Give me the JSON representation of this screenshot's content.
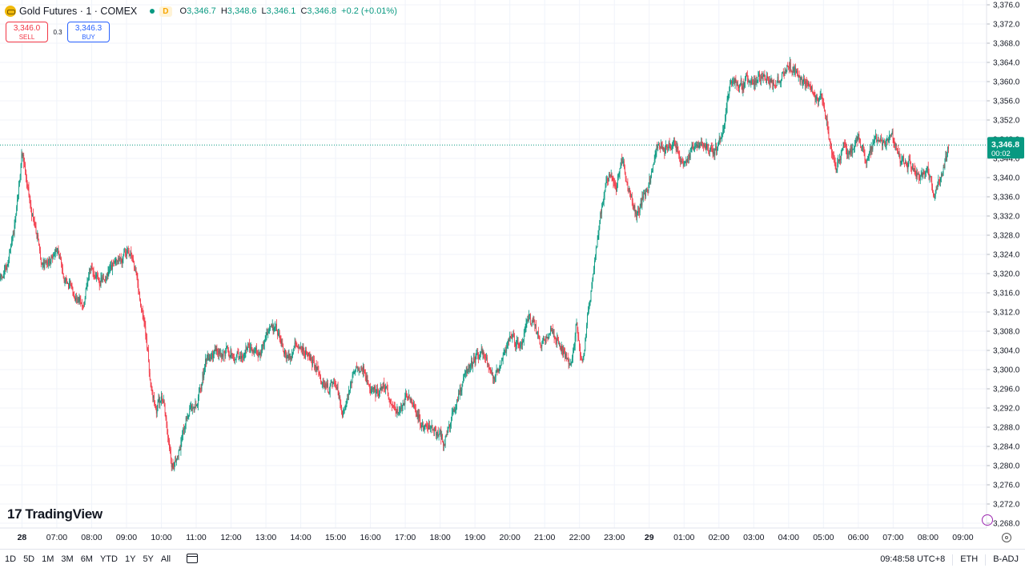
{
  "header": {
    "title": "Gold Futures · 1 · COMEX",
    "badge": "D",
    "ohlc": {
      "o_key": "O",
      "o": "3,346.7",
      "h_key": "H",
      "h": "3,348.6",
      "l_key": "L",
      "l": "3,346.1",
      "c_key": "C",
      "c": "3,346.8",
      "change": "+0.2 (+0.01%)"
    }
  },
  "trade": {
    "sell_price": "3,346.0",
    "sell_label": "SELL",
    "spread": "0.3",
    "buy_price": "3,346.3",
    "buy_label": "BUY"
  },
  "brand": {
    "name": "TradingView",
    "logo": "17"
  },
  "price_tag": {
    "price": "3,346.8",
    "countdown": "00:02"
  },
  "bottom_bar": {
    "ranges": [
      "1D",
      "5D",
      "1M",
      "3M",
      "6M",
      "YTD",
      "1Y",
      "5Y",
      "All"
    ],
    "time": "09:48:58 UTC+8",
    "session": "ETH",
    "adjust": "B-ADJ"
  },
  "colors": {
    "up": "#089981",
    "down": "#f23645",
    "grid": "#f0f3fa",
    "accent": "#2962ff"
  },
  "icons": [
    "calendar-range-icon",
    "gear-icon",
    "alert-icon",
    "tradingview-logo-icon"
  ],
  "chart_data": {
    "type": "candlestick",
    "symbol": "Gold Futures",
    "interval": "1",
    "exchange": "COMEX",
    "ylim": [
      3267,
      3377
    ],
    "y_ticks": [
      3268,
      3272,
      3276,
      3280,
      3284,
      3288,
      3292,
      3296,
      3300,
      3304,
      3308,
      3312,
      3316,
      3320,
      3324,
      3328,
      3332,
      3336,
      3340,
      3344,
      3348,
      3352,
      3356,
      3360,
      3364,
      3368,
      3372,
      3376
    ],
    "y_tick_labels": [
      "3,268.0",
      "3,272.0",
      "3,276.0",
      "3,280.0",
      "3,284.0",
      "3,288.0",
      "3,292.0",
      "3,296.0",
      "3,300.0",
      "3,304.0",
      "3,308.0",
      "3,312.0",
      "3,316.0",
      "3,320.0",
      "3,324.0",
      "3,328.0",
      "3,332.0",
      "3,336.0",
      "3,340.0",
      "3,344.0",
      "3,348.0",
      "3,352.0",
      "3,356.0",
      "3,360.0",
      "3,364.0",
      "3,368.0",
      "3,372.0",
      "3,376.0"
    ],
    "x_ticks": [
      "28",
      "07:00",
      "08:00",
      "09:00",
      "10:00",
      "11:00",
      "12:00",
      "13:00",
      "14:00",
      "15:00",
      "16:00",
      "17:00",
      "18:00",
      "19:00",
      "20:00",
      "21:00",
      "22:00",
      "23:00",
      "29",
      "01:00",
      "02:00",
      "03:00",
      "04:00",
      "05:00",
      "06:00",
      "07:00",
      "08:00",
      "09:00"
    ],
    "x_tick_hours": [
      6.0,
      7,
      8,
      9,
      10,
      11,
      12,
      13,
      14,
      15,
      16,
      17,
      18,
      19,
      20,
      21,
      22,
      23,
      24,
      25,
      26,
      27,
      28,
      29,
      30,
      31,
      32,
      33
    ],
    "x_range_hours": [
      5.37,
      33.68
    ],
    "last_price": 3346.8,
    "price_path": [
      [
        5.37,
        3319
      ],
      [
        5.55,
        3321
      ],
      [
        5.8,
        3331
      ],
      [
        6.0,
        3346
      ],
      [
        6.2,
        3335
      ],
      [
        6.4,
        3329
      ],
      [
        6.55,
        3322
      ],
      [
        6.8,
        3323
      ],
      [
        7.0,
        3325
      ],
      [
        7.2,
        3319
      ],
      [
        7.5,
        3316
      ],
      [
        7.75,
        3313
      ],
      [
        7.95,
        3321
      ],
      [
        8.3,
        3318
      ],
      [
        8.55,
        3321
      ],
      [
        8.8,
        3323
      ],
      [
        9.0,
        3325
      ],
      [
        9.2,
        3322
      ],
      [
        9.35,
        3316
      ],
      [
        9.55,
        3306
      ],
      [
        9.7,
        3296
      ],
      [
        9.85,
        3291
      ],
      [
        10.0,
        3296
      ],
      [
        10.15,
        3287
      ],
      [
        10.3,
        3280
      ],
      [
        10.5,
        3283
      ],
      [
        10.7,
        3290
      ],
      [
        11.0,
        3293
      ],
      [
        11.3,
        3303
      ],
      [
        11.6,
        3304
      ],
      [
        12.0,
        3303
      ],
      [
        12.3,
        3302
      ],
      [
        12.5,
        3305
      ],
      [
        12.8,
        3303
      ],
      [
        13.0,
        3308
      ],
      [
        13.3,
        3309
      ],
      [
        13.6,
        3302
      ],
      [
        13.9,
        3305
      ],
      [
        14.2,
        3303
      ],
      [
        14.5,
        3299
      ],
      [
        14.8,
        3296
      ],
      [
        15.0,
        3297
      ],
      [
        15.2,
        3290
      ],
      [
        15.5,
        3300
      ],
      [
        15.8,
        3300
      ],
      [
        16.0,
        3296
      ],
      [
        16.2,
        3295
      ],
      [
        16.4,
        3297
      ],
      [
        16.6,
        3293
      ],
      [
        16.8,
        3290
      ],
      [
        17.0,
        3295
      ],
      [
        17.2,
        3292
      ],
      [
        17.5,
        3288
      ],
      [
        17.8,
        3288
      ],
      [
        18.1,
        3285
      ],
      [
        18.4,
        3292
      ],
      [
        18.7,
        3300
      ],
      [
        19.0,
        3302
      ],
      [
        19.2,
        3304
      ],
      [
        19.5,
        3298
      ],
      [
        19.8,
        3303
      ],
      [
        20.0,
        3307
      ],
      [
        20.3,
        3305
      ],
      [
        20.5,
        3311
      ],
      [
        20.7,
        3309
      ],
      [
        20.9,
        3305
      ],
      [
        21.15,
        3309
      ],
      [
        21.35,
        3306
      ],
      [
        21.6,
        3303
      ],
      [
        21.75,
        3300
      ],
      [
        21.9,
        3310
      ],
      [
        22.05,
        3300
      ],
      [
        22.2,
        3310
      ],
      [
        22.4,
        3322
      ],
      [
        22.6,
        3333
      ],
      [
        22.75,
        3340
      ],
      [
        22.9,
        3341
      ],
      [
        23.05,
        3337
      ],
      [
        23.2,
        3344
      ],
      [
        23.4,
        3337
      ],
      [
        23.6,
        3332
      ],
      [
        23.8,
        3336
      ],
      [
        24.0,
        3339
      ],
      [
        24.2,
        3347
      ],
      [
        24.45,
        3346
      ],
      [
        24.7,
        3347
      ],
      [
        25.0,
        3342
      ],
      [
        25.2,
        3346
      ],
      [
        25.5,
        3347
      ],
      [
        25.8,
        3345
      ],
      [
        26.05,
        3348
      ],
      [
        26.3,
        3360
      ],
      [
        26.55,
        3359
      ],
      [
        26.8,
        3360
      ],
      [
        27.05,
        3360
      ],
      [
        27.3,
        3361
      ],
      [
        27.55,
        3359
      ],
      [
        27.8,
        3361
      ],
      [
        28.05,
        3363
      ],
      [
        28.3,
        3361
      ],
      [
        28.55,
        3359
      ],
      [
        28.75,
        3356
      ],
      [
        28.95,
        3357
      ],
      [
        29.15,
        3348
      ],
      [
        29.35,
        3342
      ],
      [
        29.55,
        3347
      ],
      [
        29.8,
        3345
      ],
      [
        30.0,
        3349
      ],
      [
        30.2,
        3344
      ],
      [
        30.45,
        3348
      ],
      [
        30.7,
        3347
      ],
      [
        30.95,
        3349
      ],
      [
        31.2,
        3344
      ],
      [
        31.45,
        3343
      ],
      [
        31.7,
        3340
      ],
      [
        31.95,
        3342
      ],
      [
        32.15,
        3336
      ],
      [
        32.35,
        3340
      ],
      [
        32.5,
        3343
      ],
      [
        32.6,
        3346.8
      ]
    ]
  }
}
